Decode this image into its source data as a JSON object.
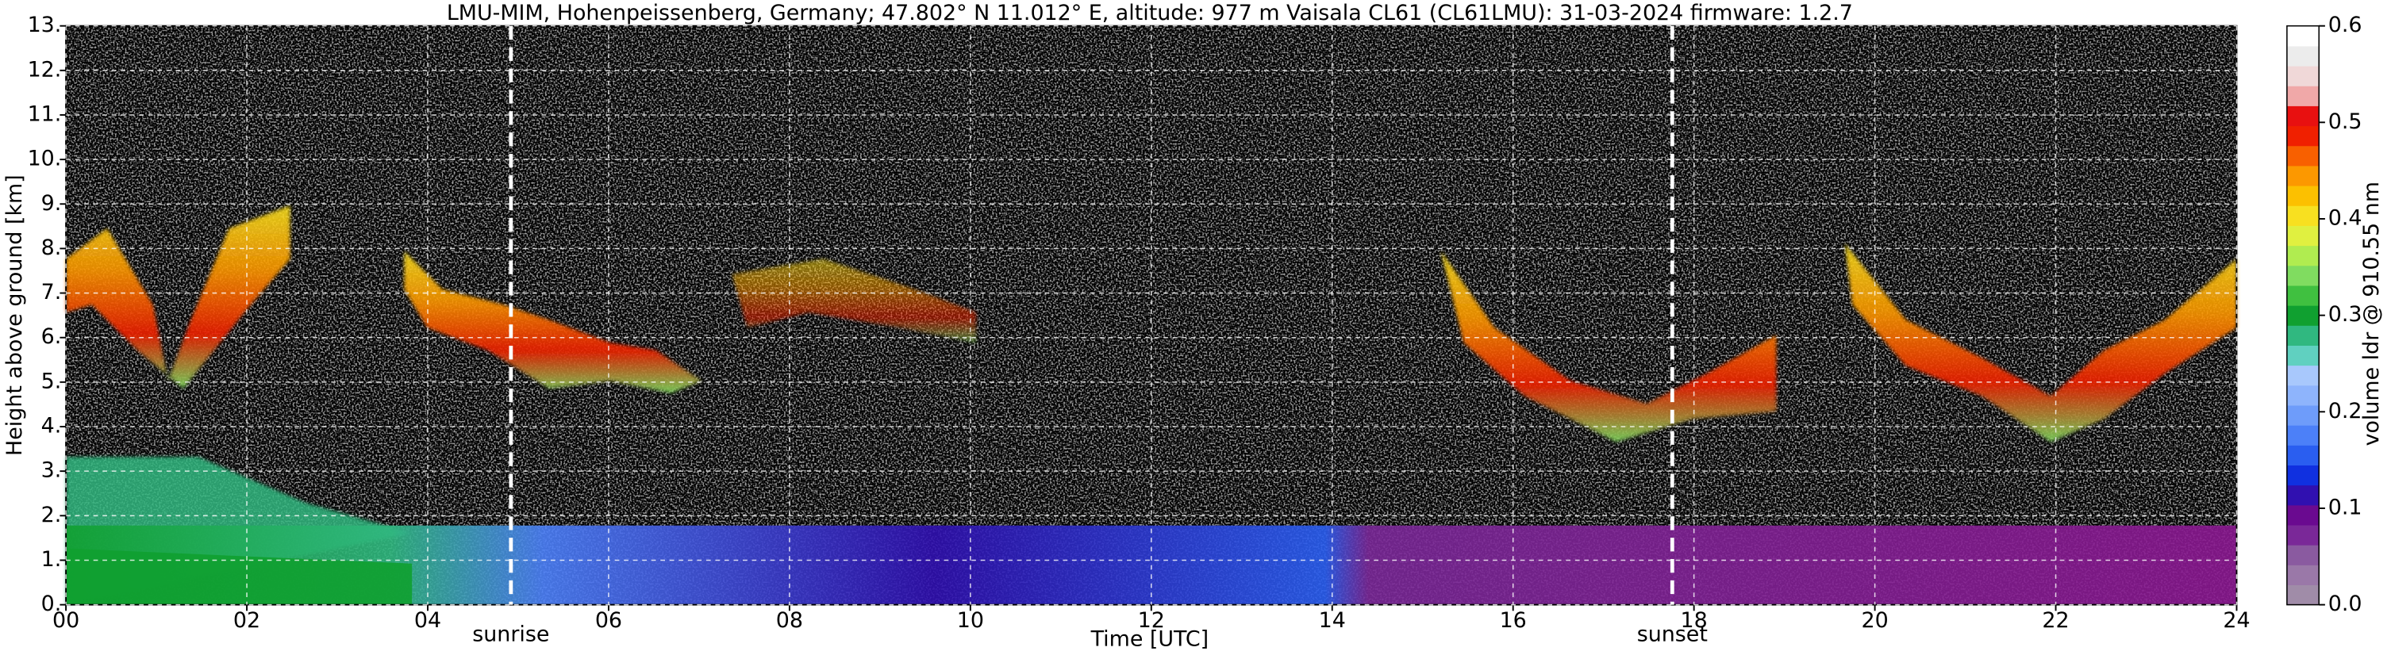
{
  "chart_data": {
    "type": "heatmap",
    "title": "LMU-MIM, Hohenpeissenberg, Germany; 47.802° N 11.012° E, altitude: 977 m    Vaisala CL61 (CL61LMU): 31-03-2024    firmware: 1.2.7",
    "x_label": "Time [UTC]",
    "y_label": "Height above ground [km]",
    "xlim": [
      0,
      24
    ],
    "xticks": [
      {
        "value": 0,
        "label": "00"
      },
      {
        "value": 2,
        "label": "02"
      },
      {
        "value": 4,
        "label": "04"
      },
      {
        "value": 6,
        "label": "06"
      },
      {
        "value": 8,
        "label": "08"
      },
      10,
      12,
      14,
      16,
      18,
      20,
      22,
      24
    ],
    "ylim": [
      0,
      13
    ],
    "yticks": [
      {
        "value": 0,
        "label": "0."
      },
      {
        "value": 1,
        "label": "1."
      },
      {
        "value": 2,
        "label": "2."
      },
      {
        "value": 3,
        "label": "3."
      },
      {
        "value": 4,
        "label": "4."
      },
      {
        "value": 5,
        "label": "5."
      },
      {
        "value": 6,
        "label": "6."
      },
      {
        "value": 7,
        "label": "7."
      },
      {
        "value": 8,
        "label": "8."
      },
      {
        "value": 9,
        "label": "9."
      },
      {
        "value": 10,
        "label": "10."
      },
      {
        "value": 11,
        "label": "11."
      },
      {
        "value": 12,
        "label": "12."
      },
      {
        "value": 13,
        "label": "13."
      }
    ],
    "grid": true,
    "annotations": [
      {
        "text": "sunrise",
        "x": 4.92
      },
      {
        "text": "sunset",
        "x": 17.76
      }
    ],
    "colorbar": {
      "label": "volume ldr @ 910.55 nm",
      "lim": [
        0,
        0.6
      ],
      "ticks": [
        {
          "value": 0,
          "label": "0.0"
        },
        0.1,
        0.2,
        0.3,
        0.4,
        0.5,
        0.6
      ],
      "colors": [
        "#a08ca8",
        "#9a78a8",
        "#8a5aa0",
        "#7a2898",
        "#6a0a90",
        "#3010b0",
        "#1030e0",
        "#2a5ef0",
        "#4c80f8",
        "#6e9cfa",
        "#8eb4fc",
        "#a8c8fc",
        "#60d0c0",
        "#30b880",
        "#10a030",
        "#40c040",
        "#80dc60",
        "#b0ec50",
        "#e0f040",
        "#f8e020",
        "#fcc000",
        "#fc9800",
        "#f86000",
        "#f02000",
        "#e81010",
        "#f0a8a8",
        "#f0d8d8",
        "#ececec",
        "#ffffff"
      ]
    }
  }
}
